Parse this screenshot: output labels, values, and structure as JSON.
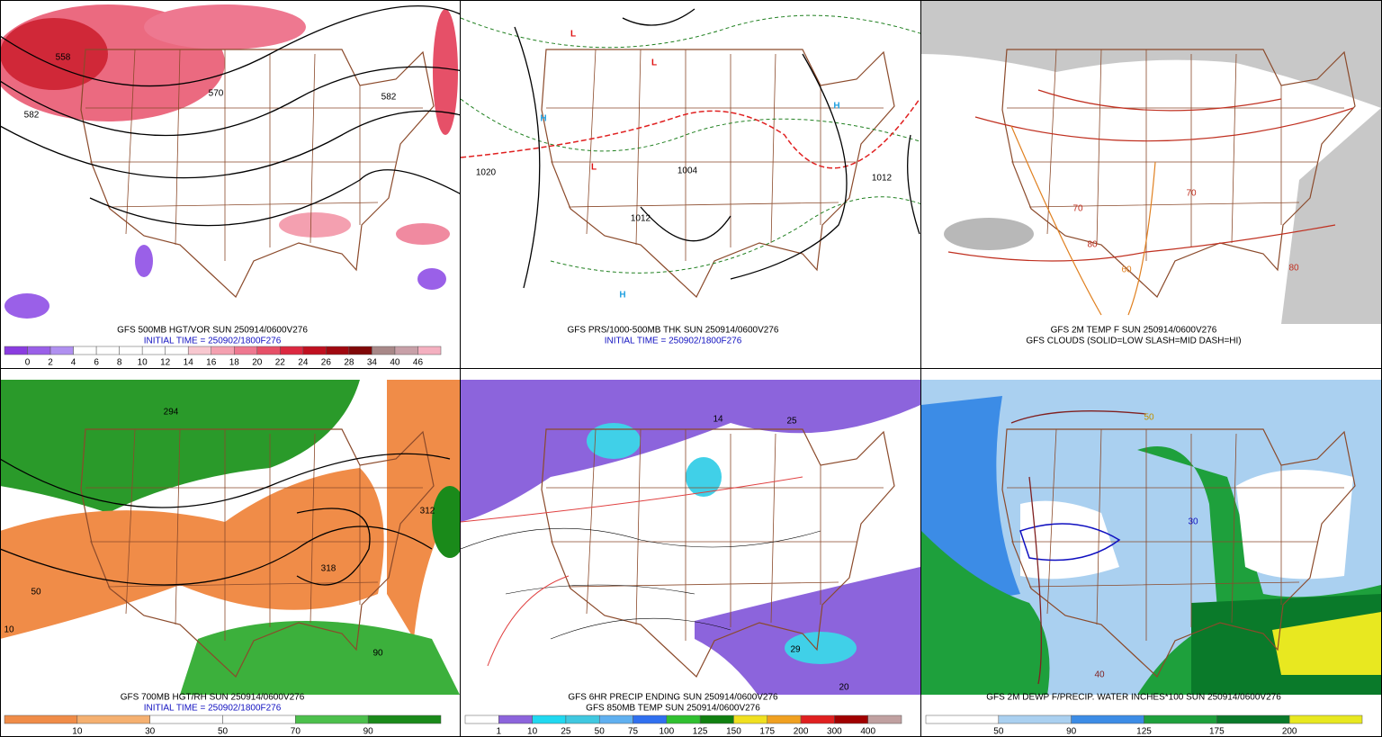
{
  "panels": [
    {
      "captions": [
        {
          "text": "GFS 500MB HGT/VOR SUN 250914/0600V276",
          "color": "#000000"
        },
        {
          "text": "INITIAL TIME = 250902/1800F276",
          "color": "#1010c0"
        }
      ],
      "colorbar": {
        "labels": [
          0,
          2,
          4,
          6,
          8,
          10,
          12,
          14,
          16,
          18,
          20,
          22,
          24,
          26,
          28,
          34,
          40,
          46
        ],
        "colors": [
          "#8a3ce0",
          "#9a60e8",
          "#b090f0",
          "#ffffff",
          "#ffffff",
          "#ffffff",
          "#ffffff",
          "#ffffff",
          "#f8c8d0",
          "#f4a0b0",
          "#ee7890",
          "#e65068",
          "#dc2840",
          "#c01020",
          "#a00810",
          "#800808",
          "#a88888",
          "#c8a0a8",
          "#f4b0c0"
        ]
      },
      "map_labels": [
        {
          "text": "558",
          "color": "#000000"
        },
        {
          "text": "570",
          "color": "#000000"
        },
        {
          "text": "582",
          "color": "#000000"
        },
        {
          "text": "582",
          "color": "#000000"
        }
      ]
    },
    {
      "captions": [
        {
          "text": "GFS PRS/1000-500MB THK SUN 250914/0600V276",
          "color": "#000000"
        },
        {
          "text": "INITIAL TIME = 250902/1800F276",
          "color": "#1010c0"
        }
      ],
      "map_labels": [
        {
          "text": "L",
          "color": "#e01010"
        },
        {
          "text": "L",
          "color": "#e01010"
        },
        {
          "text": "L",
          "color": "#e01010"
        },
        {
          "text": "H",
          "color": "#20a0e0"
        },
        {
          "text": "H",
          "color": "#20a0e0"
        },
        {
          "text": "H",
          "color": "#20a0e0"
        },
        {
          "text": "1020",
          "color": "#000000"
        },
        {
          "text": "1012",
          "color": "#000000"
        },
        {
          "text": "1004",
          "color": "#000000"
        },
        {
          "text": "1012",
          "color": "#000000"
        }
      ]
    },
    {
      "captions": [
        {
          "text": "GFS 2M TEMP F SUN 250914/0600V276",
          "color": "#000000"
        },
        {
          "text": "GFS CLOUDS (SOLID=LOW SLASH=MID DASH=HI)",
          "color": "#000000"
        }
      ],
      "map_labels": [
        {
          "text": "80",
          "color": "#c03020"
        },
        {
          "text": "70",
          "color": "#c03020"
        },
        {
          "text": "70",
          "color": "#c03020"
        },
        {
          "text": "60",
          "color": "#e08020"
        },
        {
          "text": "80",
          "color": "#c03020"
        }
      ]
    },
    {
      "captions": [
        {
          "text": "GFS 700MB HGT/RH SUN 250914/0600V276",
          "color": "#000000"
        },
        {
          "text": "INITIAL TIME = 250902/1800F276",
          "color": "#1010c0"
        }
      ],
      "colorbar": {
        "labels": [
          10,
          30,
          50,
          70,
          90
        ],
        "colors": [
          "#f08c48",
          "#f5b070",
          "#ffffff",
          "#ffffff",
          "#4cc04c",
          "#1a8a1a"
        ]
      },
      "map_labels": [
        {
          "text": "294",
          "color": "#000000"
        },
        {
          "text": "312",
          "color": "#000000"
        },
        {
          "text": "318",
          "color": "#000000"
        },
        {
          "text": "50",
          "color": "#000000"
        },
        {
          "text": "90",
          "color": "#000000"
        },
        {
          "text": "10",
          "color": "#000000"
        }
      ]
    },
    {
      "captions": [
        {
          "text": "GFS 6HR PRECIP ENDING SUN 250914/0600V276",
          "color": "#000000"
        },
        {
          "text": "GFS 850MB TEMP SUN 250914/0600V276",
          "color": "#000000"
        }
      ],
      "colorbar": {
        "labels": [
          1,
          10,
          25,
          50,
          75,
          100,
          125,
          150,
          175,
          200,
          300,
          400
        ],
        "colors": [
          "#ffffff",
          "#8c64dc",
          "#20d8f0",
          "#40c8e0",
          "#60b0f0",
          "#3070f0",
          "#30c030",
          "#108010",
          "#f0e020",
          "#f0a020",
          "#e02020",
          "#a00000",
          "#c0a0a0"
        ]
      },
      "map_labels": [
        {
          "text": "29",
          "color": "#000000"
        },
        {
          "text": "25",
          "color": "#000000"
        },
        {
          "text": "14",
          "color": "#000000"
        },
        {
          "text": "20",
          "color": "#000000"
        }
      ]
    },
    {
      "captions": [
        {
          "text": "GFS 2M DEWP F/PRECIP. WATER INCHES*100 SUN 250914/0600V276",
          "color": "#000000"
        }
      ],
      "colorbar": {
        "labels": [
          50,
          90,
          125,
          175,
          200
        ],
        "colors": [
          "#ffffff",
          "#aad0f0",
          "#3c8ce6",
          "#1ea03c",
          "#0a7a2a",
          "#e8e820"
        ]
      },
      "map_labels": [
        {
          "text": "50",
          "color": "#c09000"
        },
        {
          "text": "40",
          "color": "#802020"
        },
        {
          "text": "30",
          "color": "#1010c0"
        }
      ]
    }
  ]
}
